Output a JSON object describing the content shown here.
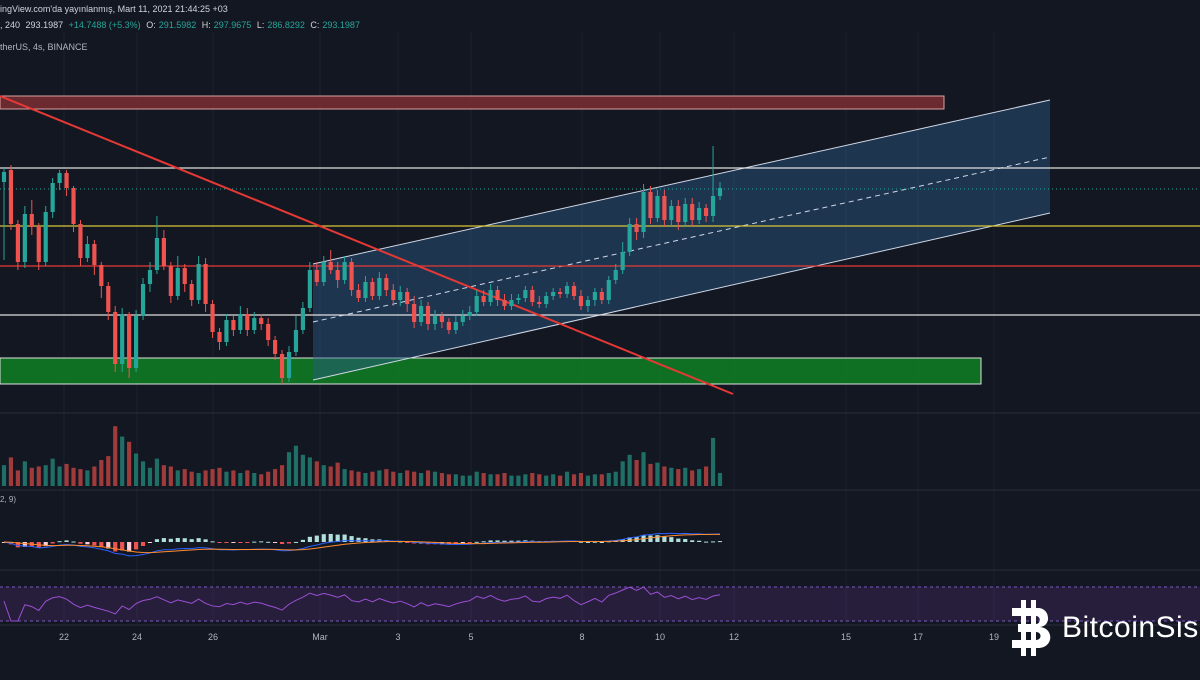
{
  "header": {
    "published": "ingView.com'da yayınlanmış, Mart 11, 2021 21:44:25 +03",
    "timeframe": ", 240",
    "open": "293.1987",
    "change": "+14.7488 (+5.3%)",
    "o_label": "O:",
    "o_value": "291.5982",
    "h_label": "H:",
    "h_value": "297.9675",
    "l_label": "L:",
    "l_value": "286.8292",
    "c_label": "C:",
    "c_value": "293.1987",
    "symbol": "therUS, 4s, BINANCE",
    "macd_label": "2, 9)"
  },
  "colors": {
    "background": "#131722",
    "up": "#26a69a",
    "down": "#ef5350",
    "resistance_box": "#7a2e33",
    "support_box": "#0f7a24",
    "channel_fill": "#2c5a8a",
    "trendline": "#e53935",
    "yellow_level": "#d8c53a",
    "red_level": "#e53935",
    "white_level": "#e0e0e0",
    "macd_line": "#2962ff",
    "signal_line": "#ff8c2f",
    "rsi_line": "#9c4fd6"
  },
  "watermark": {
    "text": "BitcoinSis",
    "icon": "bitcoin-logo-icon"
  },
  "chart_data": {
    "type": "candlestick",
    "x_ticks": [
      "22",
      "24",
      "26",
      "Mar",
      "3",
      "5",
      "8",
      "10",
      "12",
      "15",
      "17",
      "19"
    ],
    "candles": [
      [
        182,
        172,
        260,
        168,
        1.6
      ],
      [
        170,
        224,
        230,
        165,
        2.2
      ],
      [
        224,
        262,
        270,
        220,
        1.2
      ],
      [
        262,
        214,
        268,
        206,
        1.9
      ],
      [
        214,
        227,
        235,
        200,
        1.4
      ],
      [
        227,
        262,
        270,
        223,
        1.5
      ],
      [
        262,
        212,
        266,
        206,
        1.6
      ],
      [
        212,
        183,
        218,
        178,
        2.1
      ],
      [
        183,
        173,
        190,
        170,
        1.5
      ],
      [
        173,
        188,
        196,
        170,
        1.7
      ],
      [
        188,
        224,
        232,
        186,
        1.4
      ],
      [
        224,
        258,
        266,
        220,
        1.3
      ],
      [
        258,
        244,
        262,
        236,
        1.2
      ],
      [
        244,
        265,
        275,
        240,
        1.5
      ],
      [
        265,
        286,
        298,
        262,
        2.0
      ],
      [
        286,
        312,
        320,
        282,
        2.3
      ],
      [
        312,
        364,
        372,
        306,
        4.6
      ],
      [
        364,
        314,
        372,
        308,
        3.8
      ],
      [
        314,
        368,
        378,
        312,
        3.4
      ],
      [
        368,
        316,
        372,
        310,
        2.5
      ],
      [
        316,
        284,
        320,
        278,
        1.9
      ],
      [
        284,
        270,
        292,
        262,
        1.4
      ],
      [
        270,
        238,
        274,
        216,
        2.1
      ],
      [
        238,
        266,
        270,
        230,
        1.6
      ],
      [
        266,
        296,
        303,
        262,
        1.5
      ],
      [
        296,
        268,
        300,
        256,
        1.2
      ],
      [
        268,
        284,
        292,
        264,
        1.3
      ],
      [
        284,
        300,
        306,
        280,
        1.1
      ],
      [
        300,
        264,
        304,
        256,
        1.0
      ],
      [
        264,
        304,
        312,
        258,
        1.2
      ],
      [
        304,
        332,
        338,
        300,
        1.3
      ],
      [
        332,
        342,
        350,
        328,
        1.4
      ],
      [
        342,
        320,
        346,
        314,
        1.1
      ],
      [
        320,
        330,
        336,
        316,
        1.2
      ],
      [
        330,
        314,
        334,
        306,
        1.0
      ],
      [
        314,
        330,
        336,
        308,
        1.2
      ],
      [
        330,
        318,
        334,
        312,
        1.0
      ],
      [
        318,
        324,
        330,
        314,
        0.9
      ],
      [
        324,
        340,
        346,
        318,
        1.1
      ],
      [
        340,
        354,
        360,
        336,
        1.3
      ],
      [
        354,
        378,
        384,
        350,
        1.6
      ],
      [
        378,
        352,
        382,
        346,
        2.6
      ],
      [
        352,
        330,
        356,
        316,
        3.1
      ],
      [
        330,
        308,
        334,
        302,
        2.4
      ],
      [
        308,
        270,
        312,
        262,
        2.2
      ],
      [
        270,
        282,
        286,
        262,
        1.9
      ],
      [
        282,
        262,
        286,
        256,
        1.6
      ],
      [
        262,
        270,
        274,
        250,
        1.5
      ],
      [
        270,
        280,
        288,
        262,
        1.8
      ],
      [
        280,
        262,
        284,
        256,
        1.3
      ],
      [
        262,
        290,
        296,
        258,
        1.2
      ],
      [
        290,
        298,
        302,
        284,
        1.1
      ],
      [
        298,
        282,
        302,
        276,
        1.0
      ],
      [
        282,
        296,
        300,
        278,
        1.1
      ],
      [
        296,
        278,
        300,
        272,
        1.2
      ],
      [
        278,
        290,
        296,
        274,
        1.3
      ],
      [
        290,
        300,
        306,
        284,
        1.1
      ],
      [
        300,
        292,
        306,
        286,
        1.0
      ],
      [
        292,
        304,
        312,
        288,
        1.2
      ],
      [
        304,
        322,
        328,
        296,
        1.1
      ],
      [
        322,
        306,
        326,
        300,
        1.0
      ],
      [
        306,
        324,
        330,
        302,
        1.2
      ],
      [
        324,
        316,
        330,
        310,
        1.1
      ],
      [
        316,
        322,
        328,
        312,
        1.0
      ],
      [
        322,
        330,
        334,
        318,
        0.9
      ],
      [
        330,
        322,
        334,
        316,
        0.9
      ],
      [
        322,
        316,
        326,
        310,
        0.8
      ],
      [
        316,
        312,
        320,
        306,
        0.8
      ],
      [
        312,
        296,
        316,
        290,
        1.1
      ],
      [
        296,
        302,
        306,
        290,
        1.0
      ],
      [
        302,
        290,
        306,
        284,
        0.9
      ],
      [
        290,
        300,
        306,
        286,
        0.9
      ],
      [
        300,
        306,
        310,
        294,
        1.0
      ],
      [
        306,
        300,
        310,
        294,
        0.8
      ],
      [
        300,
        298,
        304,
        294,
        0.8
      ],
      [
        298,
        290,
        302,
        286,
        0.9
      ],
      [
        290,
        302,
        306,
        286,
        1.0
      ],
      [
        302,
        304,
        308,
        296,
        0.9
      ],
      [
        304,
        296,
        308,
        292,
        0.8
      ],
      [
        296,
        292,
        300,
        288,
        0.9
      ],
      [
        292,
        294,
        298,
        288,
        0.8
      ],
      [
        294,
        286,
        298,
        282,
        1.1
      ],
      [
        286,
        296,
        300,
        282,
        0.9
      ],
      [
        296,
        306,
        310,
        290,
        1.0
      ],
      [
        306,
        300,
        312,
        296,
        0.8
      ],
      [
        300,
        292,
        306,
        288,
        0.9
      ],
      [
        292,
        300,
        304,
        288,
        0.9
      ],
      [
        300,
        280,
        304,
        276,
        1.0
      ],
      [
        280,
        270,
        284,
        264,
        1.1
      ],
      [
        270,
        252,
        274,
        242,
        1.9
      ],
      [
        252,
        224,
        256,
        218,
        2.4
      ],
      [
        224,
        232,
        240,
        218,
        2.0
      ],
      [
        232,
        192,
        238,
        184,
        2.6
      ],
      [
        192,
        218,
        224,
        186,
        1.7
      ],
      [
        218,
        196,
        222,
        190,
        1.8
      ],
      [
        196,
        220,
        226,
        190,
        1.5
      ],
      [
        220,
        206,
        226,
        200,
        1.4
      ],
      [
        206,
        222,
        230,
        200,
        1.3
      ],
      [
        222,
        204,
        226,
        198,
        1.4
      ],
      [
        204,
        220,
        226,
        198,
        1.2
      ],
      [
        220,
        208,
        224,
        202,
        1.3
      ],
      [
        208,
        216,
        222,
        204,
        1.5
      ],
      [
        216,
        196,
        222,
        146,
        3.7
      ],
      [
        196,
        188,
        200,
        182,
        1.0
      ]
    ],
    "volume_unit": "relative"
  }
}
